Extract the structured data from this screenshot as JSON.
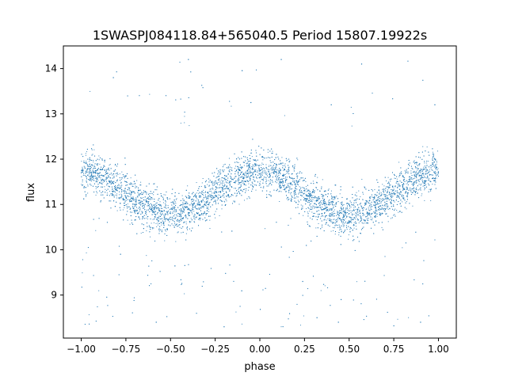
{
  "chart_data": {
    "type": "scatter",
    "title": "1SWASPJ084118.84+565040.5 Period 15807.19922s",
    "xlabel": "phase",
    "ylabel": "flux",
    "xlim": [
      -1.1,
      1.1
    ],
    "ylim": [
      8.05,
      14.5
    ],
    "xticks": [
      -1.0,
      -0.75,
      -0.5,
      -0.25,
      0.0,
      0.25,
      0.5,
      0.75,
      1.0
    ],
    "xtick_labels": [
      "−1.00",
      "−0.75",
      "−0.50",
      "−0.25",
      "0.00",
      "0.25",
      "0.50",
      "0.75",
      "1.00"
    ],
    "yticks": [
      9,
      10,
      11,
      12,
      13,
      14
    ],
    "ytick_labels": [
      "9",
      "10",
      "11",
      "12",
      "13",
      "14"
    ],
    "grid": false,
    "legend": "none",
    "point_color": "#1f77b4",
    "series": [
      {
        "shape": "sinusoid, two cycles over phase -1 to 1",
        "mean_flux": 11.25,
        "amplitude": 0.47,
        "peaks_at_phase": [
          -1.0,
          0.0,
          1.0
        ],
        "troughs_at_phase": [
          -0.45,
          0.55
        ],
        "core_scatter_sd": 0.23,
        "outlier_range": [
          8.3,
          14.2
        ],
        "points": [
          [
            -1.0,
            11.7
          ],
          [
            -0.95,
            11.75
          ],
          [
            -0.9,
            11.68
          ],
          [
            -0.85,
            11.6
          ],
          [
            -0.8,
            11.52
          ],
          [
            -0.75,
            11.42
          ],
          [
            -0.7,
            11.25
          ],
          [
            -0.65,
            11.1
          ],
          [
            -0.6,
            10.95
          ],
          [
            -0.55,
            10.85
          ],
          [
            -0.5,
            10.8
          ],
          [
            -0.45,
            10.78
          ],
          [
            -0.4,
            10.82
          ],
          [
            -0.35,
            10.9
          ],
          [
            -0.3,
            11.05
          ],
          [
            -0.25,
            11.2
          ],
          [
            -0.2,
            11.4
          ],
          [
            -0.15,
            11.55
          ],
          [
            -0.1,
            11.62
          ],
          [
            -0.05,
            11.7
          ],
          [
            0.0,
            11.75
          ],
          [
            0.05,
            11.72
          ],
          [
            0.1,
            11.62
          ],
          [
            0.15,
            11.55
          ],
          [
            0.2,
            11.45
          ],
          [
            0.25,
            11.3
          ],
          [
            0.3,
            11.15
          ],
          [
            0.35,
            11.0
          ],
          [
            0.4,
            10.88
          ],
          [
            0.45,
            10.82
          ],
          [
            0.5,
            10.8
          ],
          [
            0.55,
            10.78
          ],
          [
            0.6,
            10.8
          ],
          [
            0.65,
            10.9
          ],
          [
            0.7,
            11.05
          ],
          [
            0.75,
            11.25
          ],
          [
            0.8,
            11.4
          ],
          [
            0.85,
            11.5
          ],
          [
            0.9,
            11.58
          ],
          [
            0.95,
            11.65
          ],
          [
            1.0,
            11.72
          ],
          [
            -0.82,
            13.8
          ],
          [
            -0.4,
            14.2
          ],
          [
            0.12,
            14.2
          ],
          [
            0.57,
            14.1
          ],
          [
            -0.05,
            13.25
          ],
          [
            0.4,
            13.2
          ],
          [
            0.98,
            13.2
          ],
          [
            -0.58,
            8.4
          ],
          [
            -0.2,
            8.3
          ],
          [
            0.44,
            8.4
          ],
          [
            0.9,
            8.4
          ],
          [
            0.32,
            8.5
          ],
          [
            -0.78,
            9.9
          ],
          [
            0.24,
            9.3
          ]
        ]
      }
    ]
  }
}
